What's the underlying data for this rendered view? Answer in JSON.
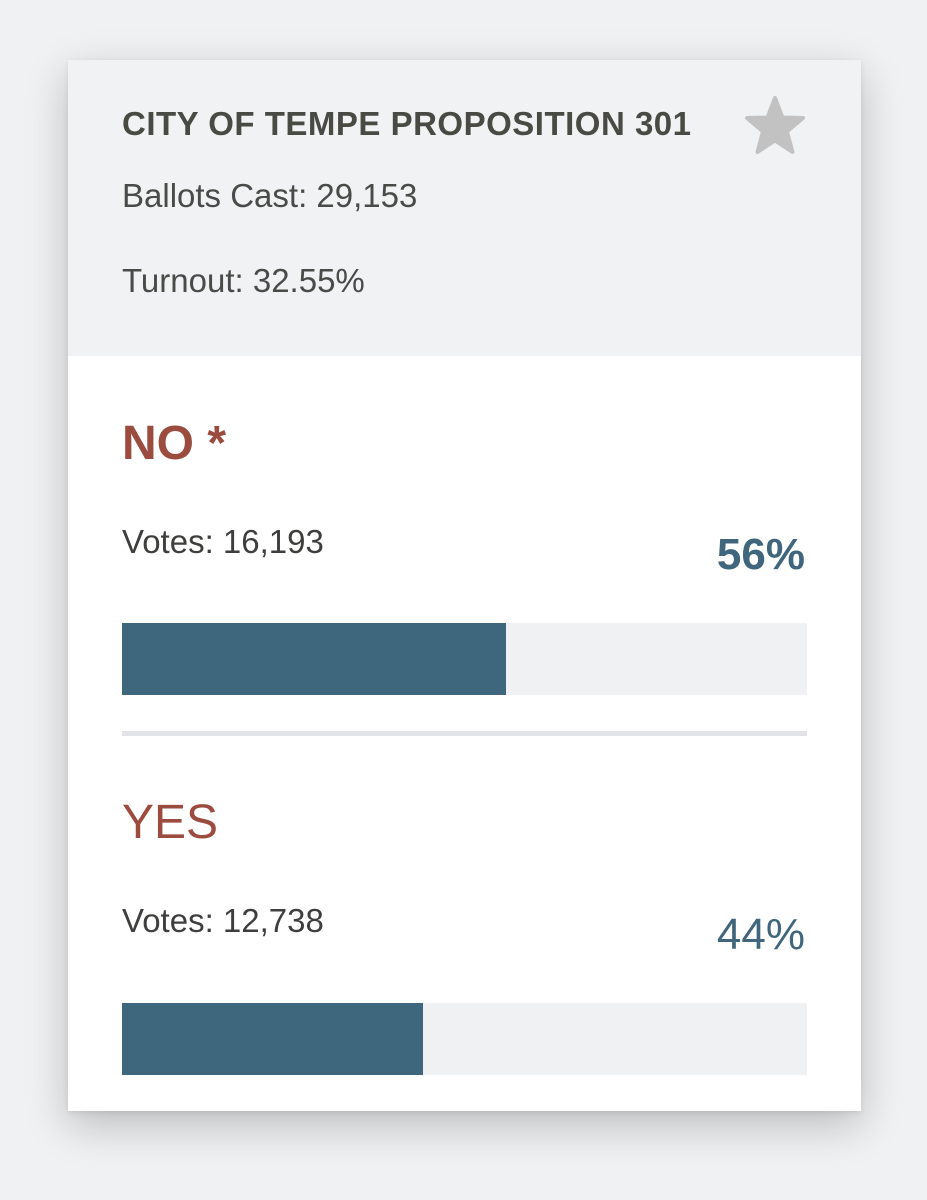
{
  "race": {
    "title": "CITY OF TEMPE PROPOSITION 301",
    "ballots_cast": "Ballots Cast: 29,153",
    "turnout": "Turnout: 32.55%",
    "favorite_icon": "star-icon"
  },
  "colors": {
    "option_name": "#9c4b3f",
    "percent": "#3f667c",
    "bar_fill": "#3e677e",
    "bar_track": "#f0f1f3",
    "header_bg": "#f1f2f4",
    "star": "#c2c2c2"
  },
  "options": [
    {
      "label": "NO *",
      "votes": "Votes: 16,193",
      "percent": "56%",
      "share": 0.56,
      "winner": true
    },
    {
      "label": "YES",
      "votes": "Votes: 12,738",
      "percent": "44%",
      "share": 0.44,
      "winner": false
    }
  ]
}
